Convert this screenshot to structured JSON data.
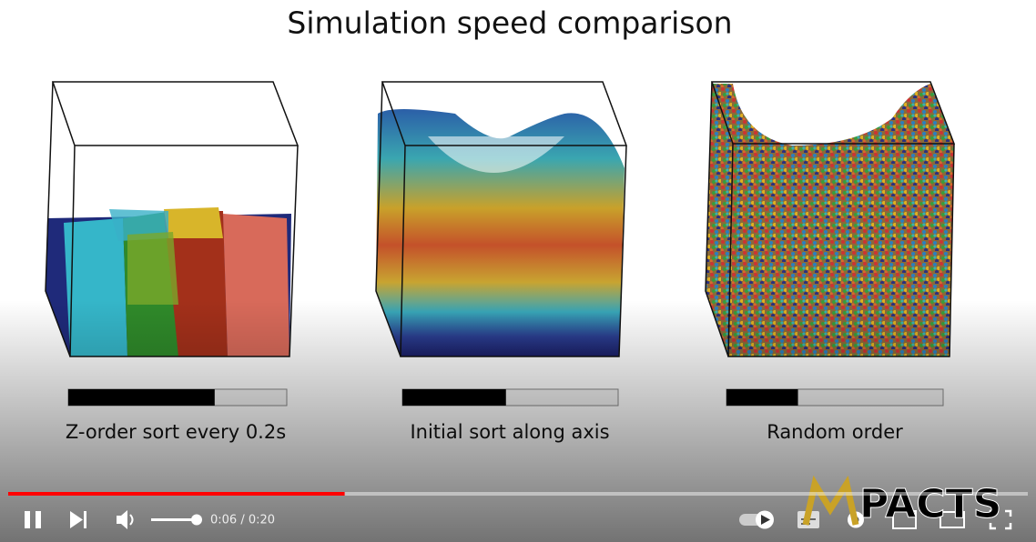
{
  "title": "Simulation speed comparison",
  "panels": [
    {
      "label": "Z-order sort every 0.2s",
      "progress": 0.67
    },
    {
      "label": "Initial sort along axis",
      "progress": 0.48
    },
    {
      "label": "Random order",
      "progress": 0.33
    }
  ],
  "player": {
    "time": "0:06 / 0:20",
    "progress": 0.33,
    "volume": 1.0
  },
  "logo": "PACTS"
}
